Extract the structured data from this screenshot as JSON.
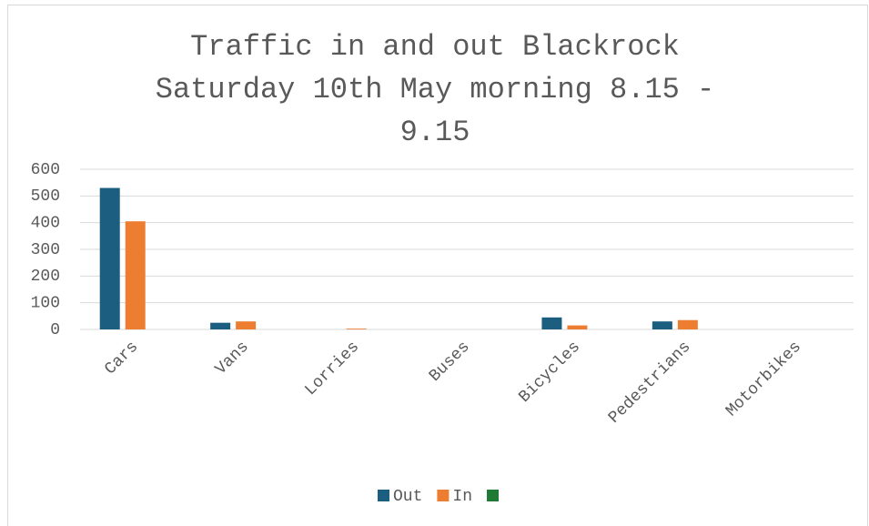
{
  "chart_data": {
    "type": "bar",
    "title": "Traffic in and out Blackrock Saturday 10th May morning 8.15 - 9.15",
    "categories": [
      "Cars",
      "Vans",
      "Lorries",
      "Buses",
      "Bicycles",
      "Pedestrians",
      "Motorbikes"
    ],
    "series": [
      {
        "name": "Out",
        "color": "#1b5e80",
        "values": [
          530,
          25,
          0,
          0,
          45,
          30,
          0
        ]
      },
      {
        "name": "In",
        "color": "#ed7d31",
        "values": [
          405,
          30,
          3,
          0,
          15,
          35,
          0
        ]
      },
      {
        "color": "#1e7a34",
        "values": [
          null,
          null,
          null,
          null,
          null,
          null,
          null
        ]
      }
    ],
    "ylim": [
      0,
      600
    ],
    "yticks": [
      0,
      100,
      200,
      300,
      400,
      500,
      600
    ],
    "grid": true,
    "legend": "bottom"
  }
}
